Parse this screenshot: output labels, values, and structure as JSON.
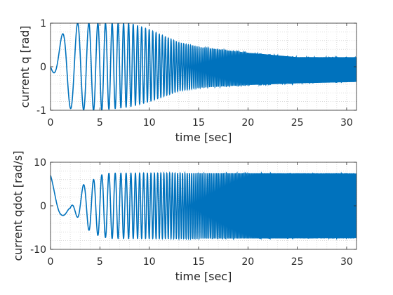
{
  "chart_data": [
    {
      "type": "line",
      "title": "",
      "xlabel": "time [sec]",
      "ylabel": "current q [rad]",
      "xlim": [
        0,
        31
      ],
      "ylim": [
        -1,
        1
      ],
      "xticks": [
        "0",
        "5",
        "10",
        "15",
        "20",
        "25",
        "30"
      ],
      "yticks": [
        "1",
        "0",
        "-1"
      ],
      "grid": "dotted minor",
      "color": "#0072BD",
      "series": [
        {
          "description": "chirp oscillation, frequency increases with time, amplitude decays",
          "t": [
            0,
            1.6,
            3.7,
            5,
            8,
            10,
            13,
            15,
            20,
            25,
            31
          ],
          "upper": [
            0,
            1.0,
            1.0,
            1.0,
            1.0,
            0.85,
            0.55,
            0.45,
            0.32,
            0.22,
            0.22
          ],
          "lower": [
            0,
            -0.95,
            -1.0,
            -1.0,
            -0.92,
            -0.8,
            -0.55,
            -0.48,
            -0.42,
            -0.38,
            -0.35
          ]
        }
      ]
    },
    {
      "type": "line",
      "title": "",
      "xlabel": "time [sec]",
      "ylabel": "current qdot [rad/s]",
      "xlim": [
        0,
        31
      ],
      "ylim": [
        -10,
        10
      ],
      "xticks": [
        "0",
        "5",
        "10",
        "15",
        "20",
        "25",
        "30"
      ],
      "yticks": [
        "10",
        "0",
        "-10"
      ],
      "grid": "dotted minor",
      "color": "#0072BD",
      "series": [
        {
          "description": "chirp velocity, amplitude grows then saturates near +/-7.5",
          "t": [
            0,
            1,
            2,
            3,
            4,
            5,
            6,
            8,
            10,
            11,
            15,
            20,
            25,
            31
          ],
          "upper": [
            7,
            0,
            -0.5,
            4.5,
            5.5,
            7,
            7.5,
            7.5,
            7.5,
            7.5,
            7.5,
            7.5,
            7.5,
            7.5
          ],
          "lower": [
            -1,
            -2,
            -3,
            -2.5,
            -6,
            -7,
            -7.5,
            -7.5,
            -7.5,
            -7.5,
            -7.5,
            -7.5,
            -7.5,
            -7.5
          ]
        }
      ]
    }
  ]
}
